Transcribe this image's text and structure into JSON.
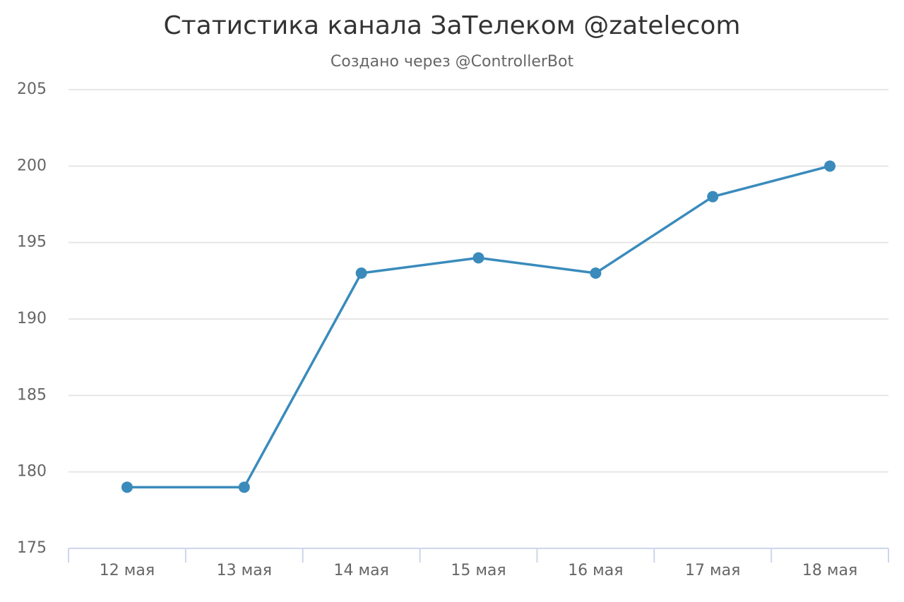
{
  "chart_data": {
    "type": "line",
    "title": "Статистика канала ЗаТелеком @zatelecom",
    "subtitle": "Создано через @ControllerBot",
    "categories": [
      "12 мая",
      "13 мая",
      "14 мая",
      "15 мая",
      "16 мая",
      "17 мая",
      "18 мая"
    ],
    "values": [
      179,
      179,
      193,
      194,
      193,
      198,
      200
    ],
    "color": "#3a8bbc",
    "ylim": [
      175,
      205
    ],
    "yticks": [
      175,
      180,
      185,
      190,
      195,
      200,
      205
    ],
    "grid": true
  }
}
